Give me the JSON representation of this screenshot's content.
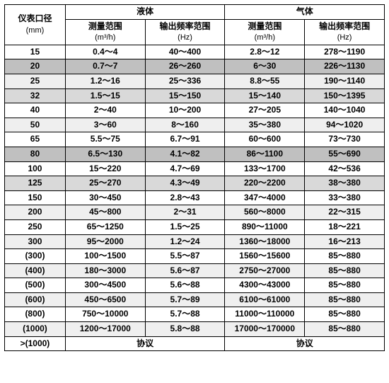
{
  "header": {
    "col_diameter": "仪表口径",
    "col_diameter_unit": "(mm)",
    "col_liquid": "液体",
    "col_gas": "气体",
    "sub_measure": "测量范围",
    "sub_measure_unit": "(m³/h)",
    "sub_freq": "输出频率范围",
    "sub_freq_unit": "(Hz)"
  },
  "palette": {
    "alt0": "#efefef",
    "alt1": "#d9d9d9",
    "alt2": "#ffffff",
    "alt3": "#c0c0c0"
  },
  "rows": [
    {
      "dia": "15",
      "lm": "0.4～4",
      "lf": "40～400",
      "gm": "2.8～12",
      "gf": "278～1190",
      "cls": "alt2"
    },
    {
      "dia": "20",
      "lm": "0.7～7",
      "lf": "26～260",
      "gm": "6～30",
      "gf": "226～1130",
      "cls": "alt3"
    },
    {
      "dia": "25",
      "lm": "1.2～16",
      "lf": "25～336",
      "gm": "8.8～55",
      "gf": "190～1140",
      "cls": "alt0"
    },
    {
      "dia": "32",
      "lm": "1.5～15",
      "lf": "15～150",
      "gm": "15～140",
      "gf": "150～1395",
      "cls": "alt1"
    },
    {
      "dia": "40",
      "lm": "2～40",
      "lf": "10～200",
      "gm": "27～205",
      "gf": "140～1040",
      "cls": "alt2"
    },
    {
      "dia": "50",
      "lm": "3～60",
      "lf": "8～160",
      "gm": "35～380",
      "gf": "94～1020",
      "cls": "alt0"
    },
    {
      "dia": "65",
      "lm": "5.5～75",
      "lf": "6.7～91",
      "gm": "60～600",
      "gf": "73～730",
      "cls": "alt2"
    },
    {
      "dia": "80",
      "lm": "6.5～130",
      "lf": "4.1～82",
      "gm": "86～1100",
      "gf": "55～690",
      "cls": "alt3"
    },
    {
      "dia": "100",
      "lm": "15～220",
      "lf": "4.7～69",
      "gm": "133～1700",
      "gf": "42～536",
      "cls": "alt2"
    },
    {
      "dia": "125",
      "lm": "25～270",
      "lf": "4.3～49",
      "gm": "220～2200",
      "gf": "38～380",
      "cls": "alt1"
    },
    {
      "dia": "150",
      "lm": "30～450",
      "lf": "2.8～43",
      "gm": "347～4000",
      "gf": "33～380",
      "cls": "alt2"
    },
    {
      "dia": "200",
      "lm": "45～800",
      "lf": "2～31",
      "gm": "560～8000",
      "gf": "22～315",
      "cls": "alt0"
    },
    {
      "dia": "250",
      "lm": "65～1250",
      "lf": "1.5～25",
      "gm": "890～11000",
      "gf": "18～221",
      "cls": "alt2"
    },
    {
      "dia": "300",
      "lm": "95～2000",
      "lf": "1.2～24",
      "gm": "1360～18000",
      "gf": "16～213",
      "cls": "alt0"
    },
    {
      "dia": "(300)",
      "lm": "100～1500",
      "lf": "5.5～87",
      "gm": "1560～15600",
      "gf": "85～880",
      "cls": "alt2"
    },
    {
      "dia": "(400)",
      "lm": "180～3000",
      "lf": "5.6～87",
      "gm": "2750～27000",
      "gf": "85～880",
      "cls": "alt0"
    },
    {
      "dia": "(500)",
      "lm": "300～4500",
      "lf": "5.6～88",
      "gm": "4300～43000",
      "gf": "85～880",
      "cls": "alt2"
    },
    {
      "dia": "(600)",
      "lm": "450～6500",
      "lf": "5.7～89",
      "gm": "6100～61000",
      "gf": "85～880",
      "cls": "alt0"
    },
    {
      "dia": "(800)",
      "lm": "750～10000",
      "lf": "5.7～88",
      "gm": "11000～110000",
      "gf": "85～880",
      "cls": "alt2"
    },
    {
      "dia": "(1000)",
      "lm": "1200～17000",
      "lf": "5.8～88",
      "gm": "17000～170000",
      "gf": "85～880",
      "cls": "alt0"
    }
  ],
  "last": {
    "dia": ">(1000)",
    "liquid": "协议",
    "gas": "协议",
    "cls": "alt2"
  }
}
